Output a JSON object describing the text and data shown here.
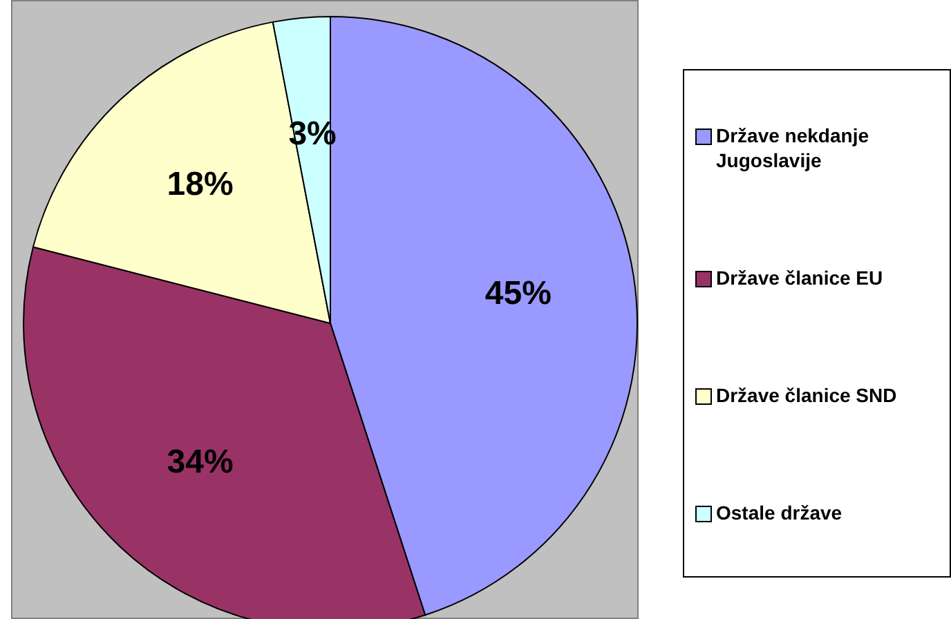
{
  "chart_data": {
    "type": "pie",
    "categories": [
      "Države nekdanje Jugoslavije",
      "Države članice EU",
      "Države članice SND",
      "Ostale države"
    ],
    "values": [
      45,
      34,
      18,
      3
    ],
    "colors": [
      "#9999ff",
      "#993366",
      "#ffffcc",
      "#ccffff"
    ],
    "value_labels": [
      "45%",
      "34%",
      "18%",
      "3%"
    ],
    "legend": "right"
  }
}
